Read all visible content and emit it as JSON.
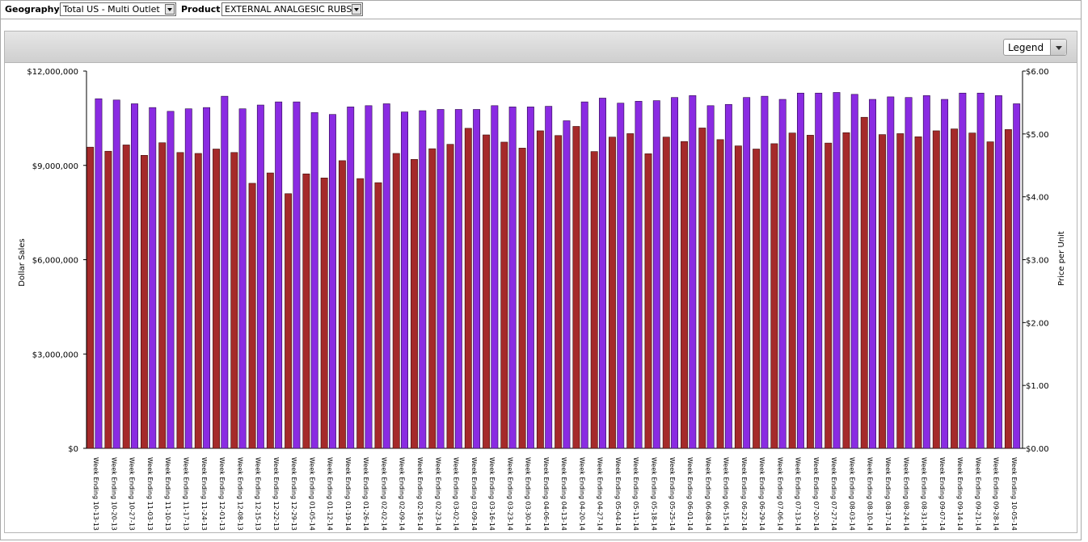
{
  "filters": {
    "geography_label": "Geography",
    "geography_value": "Total US - Multi Outlet",
    "product_label": "Product",
    "product_value": "EXTERNAL ANALGESIC RUBS"
  },
  "legend_select": {
    "label": "Legend"
  },
  "colors": {
    "dollar_sales": "#a52a2a",
    "price_per_unit": "#8a2be2"
  },
  "chart_data": {
    "type": "bar",
    "title": "",
    "xlabel": "",
    "ylabel_left": "Dollar Sales",
    "ylabel_right": "Price per Unit",
    "ylim_left": [
      0,
      12000000
    ],
    "ylim_right": [
      0,
      6
    ],
    "yticks_left": [
      "$0",
      "$3,000,000",
      "$6,000,000",
      "$9,000,000",
      "$12,000,000"
    ],
    "yticks_right": [
      "$0.00",
      "$1.00",
      "$2.00",
      "$3.00",
      "$4.00",
      "$5.00",
      "$6.00"
    ],
    "grid": false,
    "categories": [
      "Week Ending 10-13-13",
      "Week Ending 10-20-13",
      "Week Ending 10-27-13",
      "Week Ending 11-03-13",
      "Week Ending 11-10-13",
      "Week Ending 11-17-13",
      "Week Ending 11-24-13",
      "Week Ending 12-01-13",
      "Week Ending 12-08-13",
      "Week Ending 12-15-13",
      "Week Ending 12-22-13",
      "Week Ending 12-29-13",
      "Week Ending 01-05-14",
      "Week Ending 01-12-14",
      "Week Ending 01-19-14",
      "Week Ending 01-26-14",
      "Week Ending 02-02-14",
      "Week Ending 02-09-14",
      "Week Ending 02-16-14",
      "Week Ending 02-23-14",
      "Week Ending 03-02-14",
      "Week Ending 03-09-14",
      "Week Ending 03-16-14",
      "Week Ending 03-23-14",
      "Week Ending 03-30-14",
      "Week Ending 04-06-14",
      "Week Ending 04-13-14",
      "Week Ending 04-20-14",
      "Week Ending 04-27-14",
      "Week Ending 05-04-14",
      "Week Ending 05-11-14",
      "Week Ending 05-18-14",
      "Week Ending 05-25-14",
      "Week Ending 06-01-14",
      "Week Ending 06-08-14",
      "Week Ending 06-15-14",
      "Week Ending 06-22-14",
      "Week Ending 06-29-14",
      "Week Ending 07-06-14",
      "Week Ending 07-13-14",
      "Week Ending 07-20-14",
      "Week Ending 07-27-14",
      "Week Ending 08-03-14",
      "Week Ending 08-10-14",
      "Week Ending 08-17-14",
      "Week Ending 08-24-14",
      "Week Ending 08-31-14",
      "Week Ending 09-07-14",
      "Week Ending 09-14-14",
      "Week Ending 09-21-14",
      "Week Ending 09-28-14",
      "Week Ending 10-05-14"
    ],
    "series": [
      {
        "axis": "left",
        "values": [
          9580000,
          9450000,
          9650000,
          9320000,
          9720000,
          9410000,
          9380000,
          9520000,
          9410000,
          8430000,
          8760000,
          8100000,
          8730000,
          8600000,
          9150000,
          8580000,
          8450000,
          9380000,
          9190000,
          9530000,
          9670000,
          10180000,
          9970000,
          9740000,
          9550000,
          10100000,
          9950000,
          10240000,
          9440000,
          9900000,
          10010000,
          9370000,
          9900000,
          9760000,
          10190000,
          9820000,
          9620000,
          9520000,
          9690000,
          10030000,
          9960000,
          9710000,
          10040000,
          10530000,
          9980000,
          10010000,
          9910000,
          10100000,
          10160000,
          10030000,
          9750000,
          10140000
        ]
      },
      {
        "axis": "right",
        "values": [
          5.56,
          5.54,
          5.48,
          5.42,
          5.36,
          5.4,
          5.42,
          5.6,
          5.4,
          5.46,
          5.51,
          5.51,
          5.34,
          5.31,
          5.43,
          5.45,
          5.48,
          5.35,
          5.37,
          5.39,
          5.39,
          5.39,
          5.45,
          5.43,
          5.43,
          5.44,
          5.21,
          5.51,
          5.57,
          5.49,
          5.52,
          5.53,
          5.58,
          5.61,
          5.45,
          5.47,
          5.58,
          5.6,
          5.55,
          5.65,
          5.65,
          5.66,
          5.63,
          5.55,
          5.59,
          5.58,
          5.61,
          5.55,
          5.65,
          5.65,
          5.61,
          5.48
        ]
      }
    ]
  }
}
